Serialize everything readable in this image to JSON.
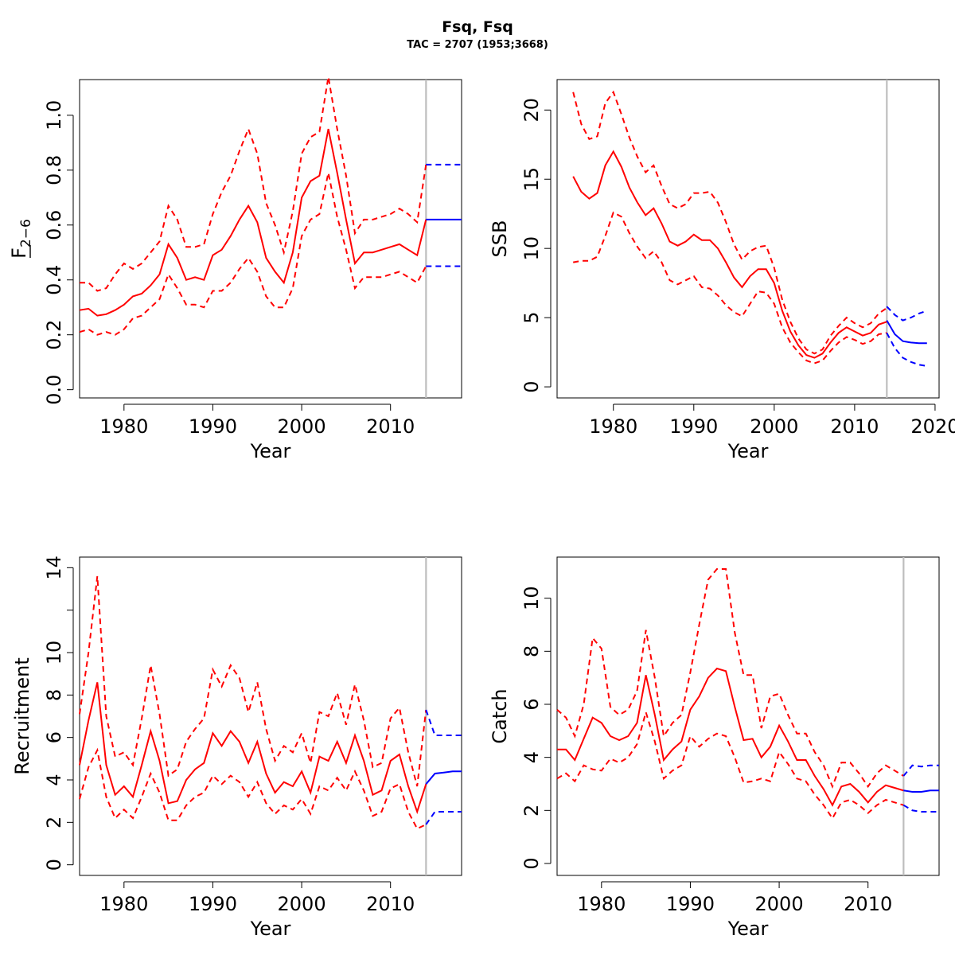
{
  "title": "Fsq, Fsq",
  "subtitle": "TAC = 2707 (1953;3668)",
  "colors": {
    "hist": "#ff0000",
    "proj": "#0000ff",
    "vline": "#bebebe"
  },
  "chart_data": [
    {
      "id": "fbar",
      "type": "line",
      "xlabel": "Year",
      "ylabel_main": "F",
      "ylabel_sub": "2−6",
      "xlim": [
        1975,
        2018
      ],
      "ylim": [
        -0.03,
        1.13
      ],
      "xticks": [
        1980,
        1990,
        2000,
        2010
      ],
      "yticks": [
        0.0,
        0.2,
        0.4,
        0.6,
        0.8,
        1.0
      ],
      "ytick_labels": [
        "0.0",
        "0.2",
        "0.4",
        "0.6",
        "0.8",
        "1.0"
      ],
      "vline": 2014,
      "historical": {
        "x": [
          1975,
          1976,
          1977,
          1978,
          1979,
          1980,
          1981,
          1982,
          1983,
          1984,
          1985,
          1986,
          1987,
          1988,
          1989,
          1990,
          1991,
          1992,
          1993,
          1994,
          1995,
          1996,
          1997,
          1998,
          1999,
          2000,
          2001,
          2002,
          2003,
          2004,
          2005,
          2006,
          2007,
          2008,
          2009,
          2010,
          2011,
          2012,
          2013,
          2014
        ],
        "estimate": [
          0.29,
          0.295,
          0.27,
          0.275,
          0.29,
          0.31,
          0.34,
          0.35,
          0.38,
          0.42,
          0.53,
          0.48,
          0.4,
          0.41,
          0.4,
          0.49,
          0.51,
          0.56,
          0.62,
          0.67,
          0.61,
          0.48,
          0.43,
          0.39,
          0.5,
          0.7,
          0.76,
          0.78,
          0.95,
          0.79,
          0.62,
          0.46,
          0.5,
          0.5,
          0.51,
          0.52,
          0.53,
          0.51,
          0.49,
          0.62
        ],
        "upper": [
          0.39,
          0.39,
          0.36,
          0.37,
          0.42,
          0.46,
          0.44,
          0.46,
          0.5,
          0.54,
          0.67,
          0.62,
          0.52,
          0.52,
          0.53,
          0.64,
          0.72,
          0.78,
          0.87,
          0.95,
          0.86,
          0.68,
          0.6,
          0.5,
          0.65,
          0.86,
          0.92,
          0.94,
          1.14,
          0.95,
          0.78,
          0.57,
          0.62,
          0.62,
          0.63,
          0.64,
          0.66,
          0.64,
          0.61,
          0.82
        ],
        "lower": [
          0.21,
          0.22,
          0.2,
          0.21,
          0.2,
          0.22,
          0.26,
          0.27,
          0.3,
          0.33,
          0.42,
          0.37,
          0.31,
          0.31,
          0.3,
          0.36,
          0.36,
          0.39,
          0.44,
          0.48,
          0.43,
          0.34,
          0.3,
          0.3,
          0.37,
          0.56,
          0.62,
          0.64,
          0.79,
          0.63,
          0.51,
          0.37,
          0.41,
          0.41,
          0.41,
          0.42,
          0.43,
          0.41,
          0.39,
          0.45
        ]
      },
      "projection": {
        "x": [
          2014,
          2015,
          2016,
          2017,
          2018
        ],
        "estimate": [
          0.62,
          0.62,
          0.62,
          0.62,
          0.62
        ],
        "upper": [
          0.82,
          0.82,
          0.82,
          0.82,
          0.82
        ],
        "lower": [
          0.45,
          0.45,
          0.45,
          0.45,
          0.45
        ]
      }
    },
    {
      "id": "ssb",
      "type": "line",
      "xlabel": "Year",
      "ylabel_main": "SSB",
      "ylabel_sub": "",
      "xlim": [
        1973,
        2020.5
      ],
      "ylim": [
        -0.8,
        22.2
      ],
      "xticks": [
        1980,
        1990,
        2000,
        2010,
        2020
      ],
      "yticks": [
        0,
        5,
        10,
        15,
        20
      ],
      "ytick_labels": [
        "0",
        "5",
        "10",
        "15",
        "20"
      ],
      "vline": 2014,
      "historical": {
        "x": [
          1975,
          1976,
          1977,
          1978,
          1979,
          1980,
          1981,
          1982,
          1983,
          1984,
          1985,
          1986,
          1987,
          1988,
          1989,
          1990,
          1991,
          1992,
          1993,
          1994,
          1995,
          1996,
          1997,
          1998,
          1999,
          2000,
          2001,
          2002,
          2003,
          2004,
          2005,
          2006,
          2007,
          2008,
          2009,
          2010,
          2011,
          2012,
          2013,
          2014
        ],
        "estimate": [
          15.2,
          14.1,
          13.6,
          14.0,
          16.0,
          17.0,
          15.9,
          14.4,
          13.3,
          12.4,
          12.9,
          11.8,
          10.5,
          10.2,
          10.5,
          11.0,
          10.6,
          10.6,
          10.0,
          9.0,
          7.9,
          7.2,
          8.0,
          8.5,
          8.5,
          7.5,
          5.5,
          4.0,
          3.0,
          2.3,
          2.1,
          2.4,
          3.2,
          3.9,
          4.3,
          4.0,
          3.7,
          3.9,
          4.5,
          4.7
        ],
        "upper": [
          21.3,
          19.0,
          17.9,
          18.1,
          20.5,
          21.3,
          19.7,
          18.0,
          16.6,
          15.5,
          16.0,
          14.5,
          13.2,
          12.9,
          13.2,
          14.0,
          14.0,
          14.1,
          13.3,
          11.9,
          10.3,
          9.2,
          9.8,
          10.1,
          10.2,
          8.6,
          6.3,
          4.7,
          3.5,
          2.7,
          2.4,
          2.7,
          3.7,
          4.4,
          5.0,
          4.6,
          4.3,
          4.6,
          5.3,
          5.7
        ],
        "lower": [
          9.0,
          9.1,
          9.1,
          9.4,
          10.9,
          12.6,
          12.3,
          11.1,
          10.1,
          9.3,
          9.8,
          9.0,
          7.7,
          7.4,
          7.7,
          8.0,
          7.2,
          7.1,
          6.6,
          5.9,
          5.4,
          5.1,
          6.0,
          6.9,
          6.8,
          6.0,
          4.3,
          3.2,
          2.5,
          1.9,
          1.7,
          1.9,
          2.6,
          3.2,
          3.6,
          3.4,
          3.1,
          3.3,
          3.8,
          3.9
        ]
      },
      "projection": {
        "x": [
          2014,
          2015,
          2016,
          2017,
          2018,
          2019
        ],
        "estimate": [
          4.8,
          3.8,
          3.3,
          3.2,
          3.15,
          3.15
        ],
        "upper": [
          5.8,
          5.2,
          4.8,
          5.0,
          5.3,
          5.5
        ],
        "lower": [
          3.9,
          2.8,
          2.1,
          1.8,
          1.6,
          1.5
        ]
      }
    },
    {
      "id": "recruitment",
      "type": "line",
      "xlabel": "Year",
      "ylabel_main": "Recruitment",
      "ylabel_sub": "",
      "xlim": [
        1975,
        2018
      ],
      "ylim": [
        -0.5,
        14.5
      ],
      "xticks": [
        1980,
        1990,
        2000,
        2010
      ],
      "yticks": [
        0,
        2,
        4,
        6,
        8,
        10,
        12,
        14
      ],
      "ytick_labels": [
        "0",
        "2",
        "4",
        "6",
        "8",
        "10",
        "",
        "14"
      ],
      "vline": 2014,
      "historical": {
        "x": [
          1975,
          1976,
          1977,
          1978,
          1979,
          1980,
          1981,
          1982,
          1983,
          1984,
          1985,
          1986,
          1987,
          1988,
          1989,
          1990,
          1991,
          1992,
          1993,
          1994,
          1995,
          1996,
          1997,
          1998,
          1999,
          2000,
          2001,
          2002,
          2003,
          2004,
          2005,
          2006,
          2007,
          2008,
          2009,
          2010,
          2011,
          2012,
          2013,
          2014
        ],
        "estimate": [
          4.7,
          6.8,
          8.6,
          4.7,
          3.3,
          3.7,
          3.2,
          4.7,
          6.3,
          4.9,
          2.9,
          3.0,
          4.0,
          4.5,
          4.8,
          6.2,
          5.6,
          6.3,
          5.8,
          4.8,
          5.8,
          4.3,
          3.4,
          3.9,
          3.7,
          4.4,
          3.4,
          5.1,
          4.9,
          5.8,
          4.8,
          6.1,
          4.9,
          3.3,
          3.5,
          4.9,
          5.2,
          3.7,
          2.5,
          3.8
        ],
        "upper": [
          7.1,
          10.0,
          13.6,
          7.0,
          5.1,
          5.3,
          4.7,
          6.9,
          9.4,
          7.1,
          4.2,
          4.5,
          5.8,
          6.4,
          6.9,
          9.2,
          8.4,
          9.4,
          8.8,
          7.2,
          8.6,
          6.4,
          4.9,
          5.6,
          5.3,
          6.2,
          4.8,
          7.2,
          7.0,
          8.1,
          6.6,
          8.5,
          6.8,
          4.6,
          4.8,
          6.9,
          7.4,
          5.3,
          3.7,
          7.3
        ],
        "lower": [
          3.1,
          4.6,
          5.4,
          3.2,
          2.2,
          2.6,
          2.2,
          3.2,
          4.3,
          3.4,
          2.1,
          2.1,
          2.8,
          3.2,
          3.4,
          4.2,
          3.8,
          4.2,
          3.9,
          3.2,
          3.9,
          2.9,
          2.4,
          2.8,
          2.6,
          3.1,
          2.4,
          3.7,
          3.5,
          4.1,
          3.5,
          4.4,
          3.5,
          2.3,
          2.5,
          3.6,
          3.8,
          2.5,
          1.7,
          1.9
        ]
      },
      "projection": {
        "x": [
          2014,
          2015,
          2016,
          2017,
          2018
        ],
        "estimate": [
          3.8,
          4.3,
          4.35,
          4.4,
          4.4
        ],
        "upper": [
          7.3,
          6.1,
          6.1,
          6.1,
          6.1
        ],
        "lower": [
          1.9,
          2.5,
          2.5,
          2.5,
          2.5
        ]
      }
    },
    {
      "id": "catch",
      "type": "line",
      "xlabel": "Year",
      "ylabel_main": "Catch",
      "ylabel_sub": "",
      "xlim": [
        1975,
        2018
      ],
      "ylim": [
        -0.45,
        11.55
      ],
      "xticks": [
        1980,
        1990,
        2000,
        2010
      ],
      "yticks": [
        0,
        2,
        4,
        6,
        8,
        10
      ],
      "ytick_labels": [
        "0",
        "2",
        "4",
        "6",
        "8",
        "10"
      ],
      "vline": 2014,
      "historical": {
        "x": [
          1975,
          1976,
          1977,
          1978,
          1979,
          1980,
          1981,
          1982,
          1983,
          1984,
          1985,
          1986,
          1987,
          1988,
          1989,
          1990,
          1991,
          1992,
          1993,
          1994,
          1995,
          1996,
          1997,
          1998,
          1999,
          2000,
          2001,
          2002,
          2003,
          2004,
          2005,
          2006,
          2007,
          2008,
          2009,
          2010,
          2011,
          2012,
          2013,
          2014
        ],
        "estimate": [
          4.3,
          4.3,
          3.9,
          4.7,
          5.5,
          5.3,
          4.8,
          4.65,
          4.8,
          5.3,
          7.1,
          5.6,
          3.9,
          4.3,
          4.6,
          5.8,
          6.3,
          7.0,
          7.35,
          7.25,
          5.9,
          4.65,
          4.7,
          4.0,
          4.4,
          5.2,
          4.6,
          3.9,
          3.9,
          3.3,
          2.8,
          2.2,
          2.9,
          3.0,
          2.7,
          2.3,
          2.7,
          2.95,
          2.85,
          2.75
        ],
        "upper": [
          5.8,
          5.5,
          4.8,
          6.0,
          8.5,
          8.1,
          5.9,
          5.6,
          5.8,
          6.5,
          8.8,
          7.0,
          4.8,
          5.3,
          5.6,
          7.2,
          9.0,
          10.7,
          11.1,
          11.1,
          8.7,
          7.1,
          7.1,
          5.1,
          6.3,
          6.4,
          5.6,
          4.9,
          4.9,
          4.2,
          3.7,
          2.9,
          3.8,
          3.8,
          3.4,
          2.9,
          3.4,
          3.7,
          3.5,
          3.3
        ],
        "lower": [
          3.2,
          3.4,
          3.1,
          3.7,
          3.55,
          3.5,
          3.95,
          3.8,
          4.0,
          4.5,
          5.7,
          4.6,
          3.2,
          3.5,
          3.7,
          4.8,
          4.4,
          4.7,
          4.9,
          4.8,
          4.0,
          3.05,
          3.1,
          3.2,
          3.1,
          4.2,
          3.75,
          3.2,
          3.1,
          2.6,
          2.2,
          1.7,
          2.3,
          2.4,
          2.2,
          1.9,
          2.2,
          2.4,
          2.3,
          2.2
        ]
      },
      "projection": {
        "x": [
          2014,
          2015,
          2016,
          2017,
          2018
        ],
        "estimate": [
          2.75,
          2.7,
          2.7,
          2.75,
          2.75
        ],
        "upper": [
          3.3,
          3.7,
          3.65,
          3.7,
          3.7
        ],
        "lower": [
          2.2,
          2.0,
          1.95,
          1.95,
          1.95
        ]
      }
    }
  ]
}
